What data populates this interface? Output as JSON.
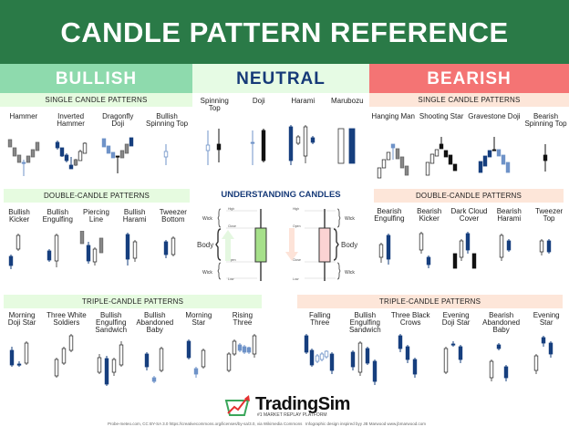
{
  "title": "CANDLE PATTERN REFERENCE",
  "sections": {
    "bullish": "BULLISH",
    "neutral": "NEUTRAL",
    "bearish": "BEARISH"
  },
  "subheaders": {
    "single": "SINGLE CANDLE PATTERNS",
    "double": "DOUBLE-CANDLE PATTERNS",
    "triple": "TRIPLE-CANDLE PATTERNS"
  },
  "bullish_single": [
    "Hammer",
    "Inverted\nHammer",
    "Dragonfly\nDoji",
    "Bullish\nSpinning Top"
  ],
  "neutral_single": [
    "Spinning\nTop",
    "Doji",
    "Harami",
    "Marubozu"
  ],
  "bearish_single": [
    "Hanging Man",
    "Shooting Star",
    "Gravestone Doji",
    "Bearish\nSpinning Top"
  ],
  "bullish_double": [
    "Bullish\nKicker",
    "Bullish\nEngulfing",
    "Piercing\nLine",
    "Bullish\nHarami",
    "Tweezer\nBottom"
  ],
  "bearish_double": [
    "Bearish\nEngulfing",
    "Bearish\nKicker",
    "Dark Cloud\nCover",
    "Bearish\nHarami",
    "Tweezer\nTop"
  ],
  "bullish_triple": [
    "Morning\nDoji Star",
    "Three White\nSoldiers",
    "Bullish\nEngulfing\nSandwich",
    "Bullish\nAbandoned\nBaby",
    "Morning\nStar",
    "Rising\nThree"
  ],
  "bearish_triple": [
    "Falling\nThree",
    "Bullish\nEngulfing\nSandwich",
    "Three Black\nCrows",
    "Evening\nDoji Star",
    "Bearish\nAbandoned\nBaby",
    "Evening\nStar"
  ],
  "understanding": {
    "title": "UNDERSTANDING CANDLES",
    "high": "High",
    "close": "Close",
    "open": "Open",
    "low": "Low",
    "wick": "Wick",
    "body": "Body",
    "bull_color": "#a6e08a",
    "bear_color": "#fbd3d3"
  },
  "colors": {
    "header": "#2a7a47",
    "bullish": "#8edaad",
    "bearish": "#f47474",
    "navy": "#163f7e"
  },
  "footer": {
    "brand": "TradingSim",
    "tagline": "#1 MARKET REPLAY PLATFORM",
    "credit_left": "Probe-meteo.com, CC BY-SA 3.0 https://creativecommons.org/licenses/by-sa/3.0, via Wikimedia Commons",
    "credit_right": "Infographic design inspired byy JB Marwood www.jbmarwood.com"
  }
}
